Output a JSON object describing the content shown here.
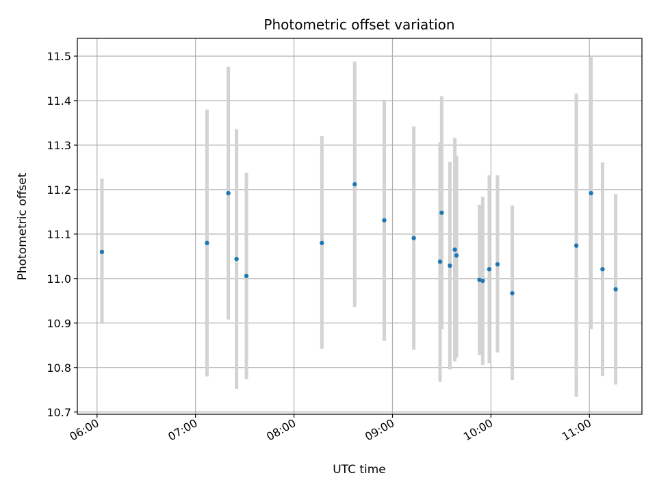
{
  "chart_data": {
    "type": "scatter",
    "title": "Photometric offset variation",
    "xlabel": "UTC time",
    "ylabel": "Photometric offset",
    "x_unit": "UTC time (HH:MM)",
    "xlim": [
      "05:48",
      "11:32"
    ],
    "ylim": [
      10.695,
      11.54
    ],
    "x_ticks": [
      "06:00",
      "07:00",
      "08:00",
      "09:00",
      "10:00",
      "11:00"
    ],
    "y_ticks": [
      "10.7",
      "10.8",
      "10.9",
      "11.0",
      "11.1",
      "11.2",
      "11.3",
      "11.4",
      "11.5"
    ],
    "grid": true,
    "marker_color": "#1f77b4",
    "errorbar_color": "#d3d3d3",
    "points": [
      {
        "x": "06:03",
        "y": 11.06,
        "ylow": 10.9,
        "yhigh": 11.225
      },
      {
        "x": "07:07",
        "y": 11.08,
        "ylow": 10.78,
        "yhigh": 11.38
      },
      {
        "x": "07:20",
        "y": 11.192,
        "ylow": 10.908,
        "yhigh": 11.476
      },
      {
        "x": "07:25",
        "y": 11.044,
        "ylow": 10.752,
        "yhigh": 11.336
      },
      {
        "x": "07:31",
        "y": 11.006,
        "ylow": 10.774,
        "yhigh": 11.238
      },
      {
        "x": "08:17",
        "y": 11.08,
        "ylow": 10.842,
        "yhigh": 11.32
      },
      {
        "x": "08:37",
        "y": 11.212,
        "ylow": 10.936,
        "yhigh": 11.488
      },
      {
        "x": "08:55",
        "y": 11.131,
        "ylow": 10.86,
        "yhigh": 11.402
      },
      {
        "x": "09:13",
        "y": 11.091,
        "ylow": 10.84,
        "yhigh": 11.342
      },
      {
        "x": "09:29",
        "y": 11.038,
        "ylow": 10.768,
        "yhigh": 11.306
      },
      {
        "x": "09:30",
        "y": 11.148,
        "ylow": 10.886,
        "yhigh": 11.41
      },
      {
        "x": "09:35",
        "y": 11.029,
        "ylow": 10.796,
        "yhigh": 11.262
      },
      {
        "x": "09:38",
        "y": 11.065,
        "ylow": 10.814,
        "yhigh": 11.316
      },
      {
        "x": "09:39",
        "y": 11.052,
        "ylow": 10.822,
        "yhigh": 11.276
      },
      {
        "x": "09:53",
        "y": 10.997,
        "ylow": 10.828,
        "yhigh": 11.166
      },
      {
        "x": "09:55",
        "y": 10.995,
        "ylow": 10.806,
        "yhigh": 11.184
      },
      {
        "x": "09:59",
        "y": 11.021,
        "ylow": 10.81,
        "yhigh": 11.232
      },
      {
        "x": "10:04",
        "y": 11.032,
        "ylow": 10.834,
        "yhigh": 11.232
      },
      {
        "x": "10:13",
        "y": 10.967,
        "ylow": 10.772,
        "yhigh": 11.164
      },
      {
        "x": "10:52",
        "y": 11.074,
        "ylow": 10.734,
        "yhigh": 11.416
      },
      {
        "x": "11:01",
        "y": 11.192,
        "ylow": 10.886,
        "yhigh": 11.498
      },
      {
        "x": "11:08",
        "y": 11.021,
        "ylow": 10.781,
        "yhigh": 11.261
      },
      {
        "x": "11:16",
        "y": 10.976,
        "ylow": 10.762,
        "yhigh": 11.19
      }
    ]
  }
}
